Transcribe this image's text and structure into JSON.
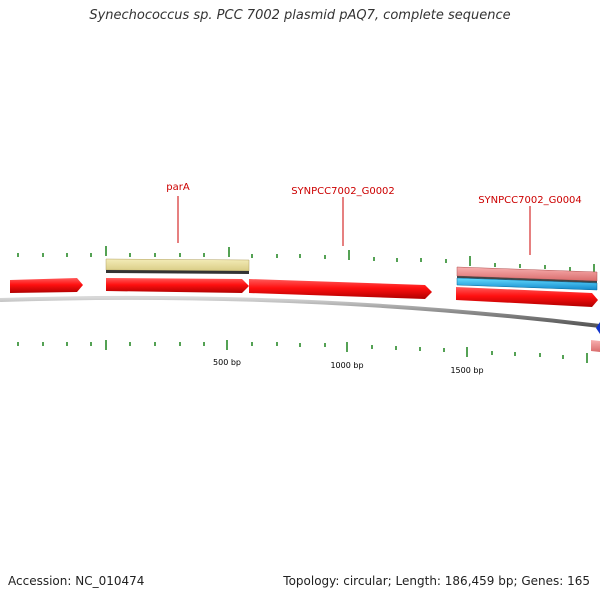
{
  "title": "Synechococcus sp. PCC 7002 plasmid pAQ7, complete sequence",
  "footer": {
    "accession": "Accession: NC_010474",
    "summary": "Topology: circular; Length: 186,459 bp; Genes: 165"
  },
  "map": {
    "gene_labels": [
      {
        "text": "parA"
      },
      {
        "text": "SYNPCC7002_G0002"
      },
      {
        "text": "SYNPCC7002_G0004"
      }
    ],
    "ruler_labels": [
      "500 bp",
      "1000 bp",
      "1500 bp"
    ],
    "colors": {
      "cds": "#e00000",
      "gene_pale": "#e8dc9a",
      "rrna_pink": "#e88a8a",
      "trna_cyan": "#22aadd",
      "marker_blue": "#1133cc",
      "tick": "#2a8a2a",
      "backbone": "#8c8c8c",
      "label": "#cc0000"
    }
  }
}
